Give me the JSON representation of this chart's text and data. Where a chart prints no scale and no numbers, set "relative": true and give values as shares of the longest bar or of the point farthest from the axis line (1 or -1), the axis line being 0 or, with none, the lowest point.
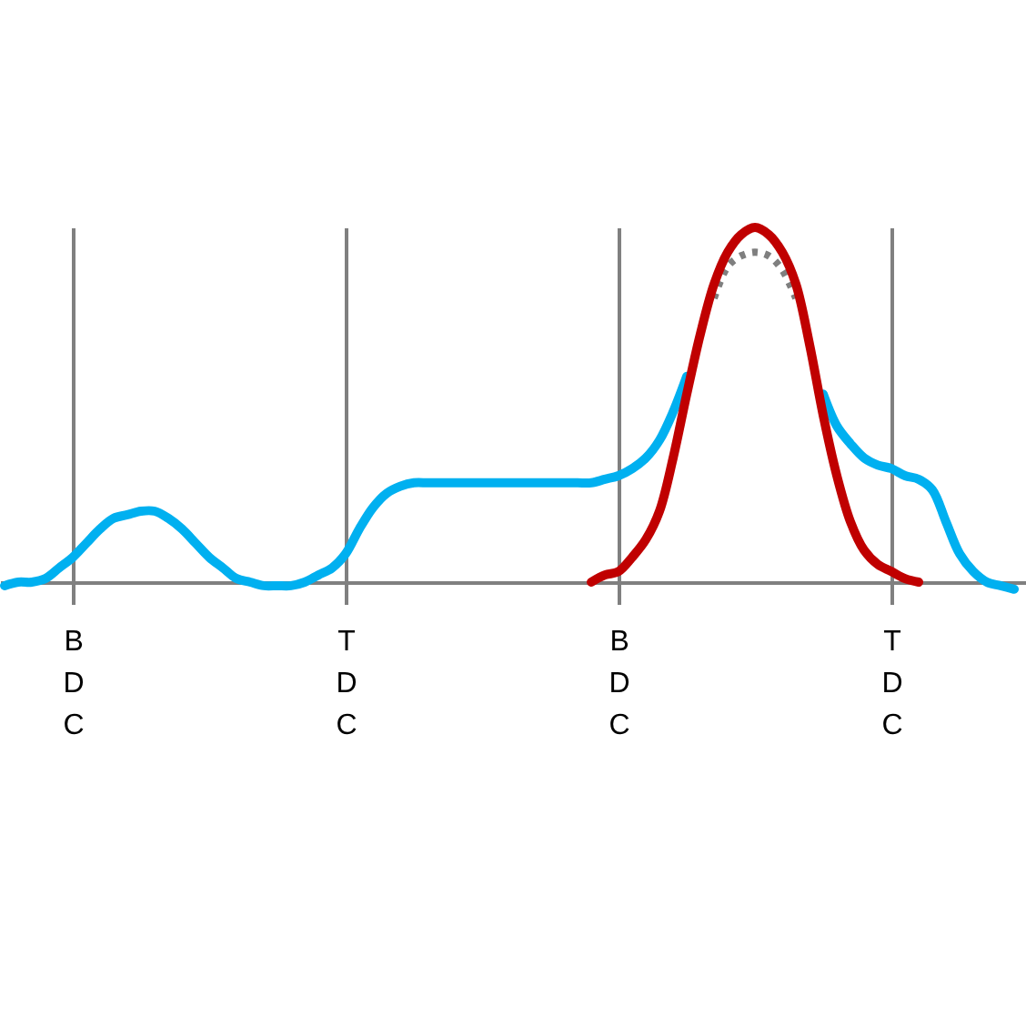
{
  "chart_data": {
    "type": "line",
    "relative": true,
    "grid": "x",
    "categories": [
      null,
      null,
      null,
      null,
      null,
      "BDC",
      null,
      null,
      null,
      null,
      null,
      null,
      null,
      null,
      null,
      null,
      null,
      null,
      null,
      null,
      null,
      null,
      null,
      null,
      null,
      "TDC",
      null,
      null,
      null,
      null,
      null,
      null,
      null,
      null,
      null,
      null,
      null,
      null,
      null,
      null,
      null,
      null,
      null,
      null,
      null,
      "BDC",
      null,
      null,
      null,
      null,
      null,
      null,
      null,
      null,
      null,
      null,
      null,
      null,
      null,
      null,
      null,
      null,
      null,
      null,
      null,
      "TDC",
      null,
      null,
      null,
      null,
      null,
      null,
      null,
      null,
      null
    ],
    "series": [
      {
        "color": "#00b0f0",
        "line_style": "solid",
        "values": [
          -0.01,
          0.0,
          0.0,
          0.01,
          0.04,
          0.07,
          0.11,
          0.15,
          0.18,
          0.19,
          0.2,
          0.2,
          0.18,
          0.15,
          0.11,
          0.07,
          0.04,
          0.01,
          0.0,
          -0.01,
          -0.01,
          -0.01,
          0.0,
          0.02,
          0.04,
          0.08,
          0.15,
          0.21,
          0.25,
          0.27,
          0.28,
          0.28,
          0.28,
          0.28,
          0.28,
          0.28,
          0.28,
          0.28,
          0.28,
          0.28,
          0.28,
          0.28,
          0.28,
          0.28,
          0.29,
          0.3,
          0.32,
          0.35,
          0.4,
          0.48,
          0.58,
          null,
          null,
          null,
          null,
          null,
          null,
          null,
          null,
          null,
          0.53,
          0.44,
          0.39,
          0.35,
          0.33,
          0.32,
          0.3,
          0.29,
          0.26,
          0.17,
          0.08,
          0.03,
          0.0,
          -0.01,
          -0.02
        ]
      },
      {
        "color": "#7f7f7f",
        "line_style": "dotted",
        "values": [
          null,
          null,
          null,
          null,
          null,
          null,
          null,
          null,
          null,
          null,
          null,
          null,
          null,
          null,
          null,
          null,
          null,
          null,
          null,
          null,
          null,
          null,
          null,
          null,
          null,
          null,
          null,
          null,
          null,
          null,
          null,
          null,
          null,
          null,
          null,
          null,
          null,
          null,
          null,
          null,
          null,
          null,
          null,
          null,
          null,
          null,
          null,
          null,
          null,
          null,
          null,
          null,
          0.8,
          0.89,
          0.92,
          0.93,
          0.92,
          0.88,
          0.8,
          null,
          null,
          null,
          null,
          null,
          null,
          null,
          null,
          null,
          null,
          null,
          null,
          null,
          null,
          null,
          null
        ]
      },
      {
        "color": "#c00000",
        "line_style": "solid",
        "values": [
          null,
          null,
          null,
          null,
          null,
          null,
          null,
          null,
          null,
          null,
          null,
          null,
          null,
          null,
          null,
          null,
          null,
          null,
          null,
          null,
          null,
          null,
          null,
          null,
          null,
          null,
          null,
          null,
          null,
          null,
          null,
          null,
          null,
          null,
          null,
          null,
          null,
          null,
          null,
          null,
          null,
          null,
          null,
          0.0,
          0.02,
          0.03,
          0.07,
          0.12,
          0.2,
          0.35,
          0.53,
          0.7,
          0.84,
          0.93,
          0.98,
          1.0,
          0.98,
          0.93,
          0.84,
          0.67,
          0.47,
          0.3,
          0.17,
          0.09,
          0.05,
          0.03,
          0.01,
          0.0,
          null,
          null,
          null,
          null,
          null,
          null,
          null
        ]
      }
    ]
  }
}
